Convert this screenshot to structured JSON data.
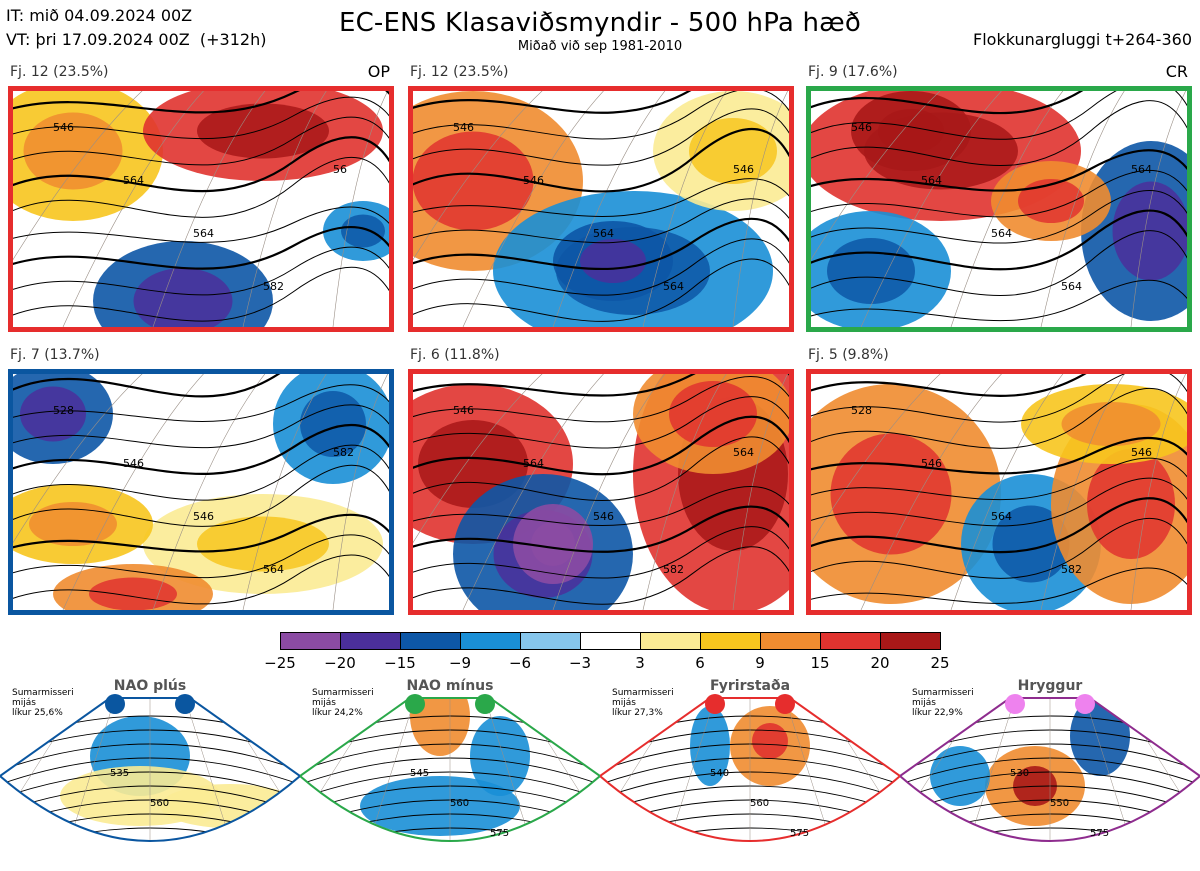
{
  "header": {
    "it_line": "IT: mið 04.09.2024 00Z",
    "vt_line": "VT: þri 17.09.2024 00Z  (+312h)",
    "title": "EC-ENS Klasaviðsmyndir - 500 hPa hæð",
    "subtitle": "Miðað við sep 1981-2010",
    "window": "Flokkunargluggi t+264-360"
  },
  "panels": [
    {
      "label": "Fj. 12 (23.5%)",
      "tag": "OP",
      "frame_color": "#e62d2d",
      "contours": [
        "546",
        "564",
        "564",
        "582",
        "56"
      ]
    },
    {
      "label": "Fj. 12 (23.5%)",
      "tag": "",
      "frame_color": "#e62d2d",
      "contours": [
        "546",
        "546",
        "564",
        "564",
        "546"
      ]
    },
    {
      "label": "Fj. 9 (17.6%)",
      "tag": "CR",
      "frame_color": "#2aa84a",
      "contours": [
        "546",
        "564",
        "564",
        "564",
        "564"
      ]
    },
    {
      "label": "Fj. 7 (13.7%)",
      "tag": "",
      "frame_color": "#0a56a0",
      "contours": [
        "528",
        "546",
        "546",
        "564",
        "582"
      ]
    },
    {
      "label": "Fj. 6 (11.8%)",
      "tag": "",
      "frame_color": "#e62d2d",
      "contours": [
        "546",
        "564",
        "546",
        "582",
        "564"
      ]
    },
    {
      "label": "Fj. 5 (9.8%)",
      "tag": "",
      "frame_color": "#e62d2d",
      "contours": [
        "528",
        "546",
        "564",
        "582",
        "546"
      ]
    }
  ],
  "colorbar": {
    "ticks": [
      "−25",
      "−20",
      "−15",
      "−9",
      "−6",
      "−3",
      "3",
      "6",
      "9",
      "15",
      "20",
      "25"
    ],
    "colors": [
      "#8b4ba3",
      "#4b2f9b",
      "#0d57a6",
      "#1a8fd6",
      "#86c6ec",
      "#ffffff",
      "#fbeb94",
      "#f7c51e",
      "#f08c30",
      "#e0332f",
      "#a81818"
    ]
  },
  "regimes": [
    {
      "name": "NAO plús",
      "note": [
        "Sumarmisseri",
        "mijás",
        "líkur 25,6%"
      ],
      "color": "#0a56a0",
      "dot": "#0a56a0",
      "contours": [
        "535",
        "560"
      ]
    },
    {
      "name": "NAO mínus",
      "note": [
        "Sumarmisseri",
        "mijás",
        "líkur 24,2%"
      ],
      "color": "#2aa84a",
      "dot": "#2aa84a",
      "contours": [
        "545",
        "560",
        "575"
      ]
    },
    {
      "name": "Fyrirstaða",
      "note": [
        "Sumarmisseri",
        "mijás",
        "líkur 27,3%"
      ],
      "color": "#e62d2d",
      "dot": "#e62d2d",
      "contours": [
        "540",
        "560",
        "575"
      ]
    },
    {
      "name": "Hryggur",
      "note": [
        "Sumarmisseri",
        "mijás",
        "líkur 22,9%"
      ],
      "color": "#8e2c8e",
      "dot": "#ee82ee",
      "contours": [
        "530",
        "550",
        "575"
      ]
    }
  ]
}
